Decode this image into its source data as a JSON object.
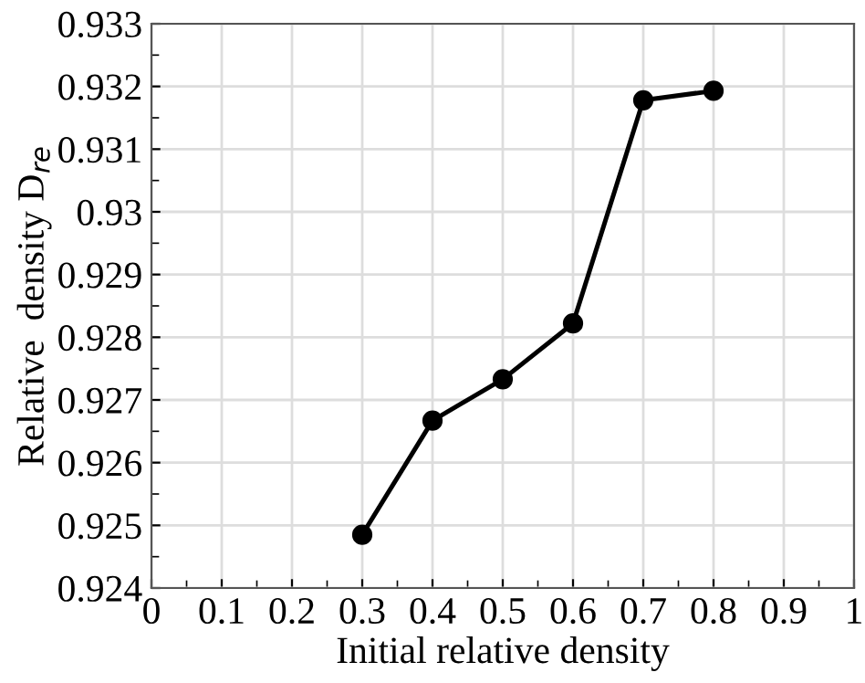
{
  "chart_data": {
    "type": "line",
    "xlabel": "Initial relative density",
    "ylabel": "Relative  density D$_{re}$",
    "x": [
      0.3,
      0.4,
      0.5,
      0.6,
      0.7,
      0.8
    ],
    "series": [
      {
        "color": "#000000",
        "values": [
          0.92485,
          0.92667,
          0.92733,
          0.92822,
          0.93178,
          0.93193
        ]
      }
    ],
    "xlim": [
      0,
      1
    ],
    "xticks": [
      0,
      0.1,
      0.2,
      0.3,
      0.4,
      0.5,
      0.6,
      0.7,
      0.8,
      0.9,
      1
    ],
    "ylim": [
      0.924,
      0.933
    ],
    "yticks": [
      0.924,
      0.925,
      0.926,
      0.927,
      0.928,
      0.929,
      0.93,
      0.931,
      0.932,
      0.933
    ],
    "grid": true,
    "marker": "circle",
    "line_style": "solid"
  }
}
